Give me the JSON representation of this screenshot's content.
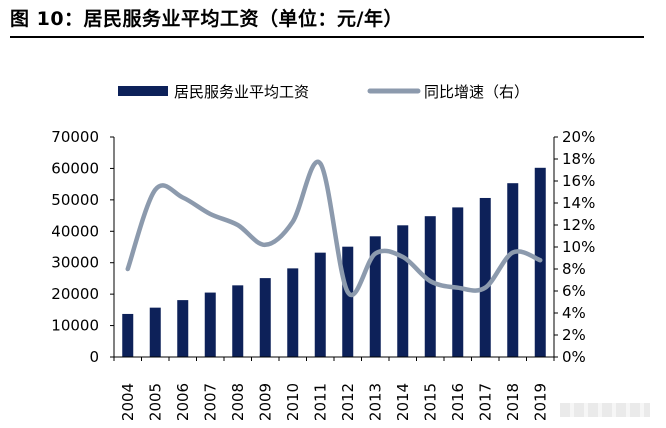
{
  "figure_title": "图 10：居民服务业平均工资（单位：元/年）",
  "chart_data": {
    "type": "bar",
    "categories": [
      "2004",
      "2005",
      "2006",
      "2007",
      "2008",
      "2009",
      "2010",
      "2011",
      "2012",
      "2013",
      "2014",
      "2015",
      "2016",
      "2017",
      "2018",
      "2019"
    ],
    "series": [
      {
        "name": "居民服务业平均工资",
        "type": "bar",
        "axis": "left",
        "color": "#0d2159",
        "values": [
          13700,
          15700,
          18100,
          20500,
          22800,
          25100,
          28200,
          33200,
          35100,
          38400,
          41900,
          44800,
          47600,
          50600,
          55300,
          60200
        ]
      },
      {
        "name": "同比增速（右）",
        "type": "line",
        "axis": "right",
        "color": "#8c9aad",
        "values": [
          8.0,
          15.2,
          14.5,
          13.0,
          12.0,
          10.2,
          12.3,
          17.6,
          5.9,
          9.4,
          9.1,
          6.9,
          6.3,
          6.3,
          9.5,
          8.8
        ]
      }
    ],
    "y_left": {
      "min": 0,
      "max": 70000,
      "step": 10000,
      "ticks": [
        "0",
        "10000",
        "20000",
        "30000",
        "40000",
        "50000",
        "60000",
        "70000"
      ]
    },
    "y_right": {
      "min": 0,
      "max": 20,
      "step": 2,
      "ticks": [
        "0%",
        "2%",
        "4%",
        "6%",
        "8%",
        "10%",
        "12%",
        "14%",
        "16%",
        "18%",
        "20%"
      ]
    },
    "grid": false,
    "legend_position": "top"
  }
}
